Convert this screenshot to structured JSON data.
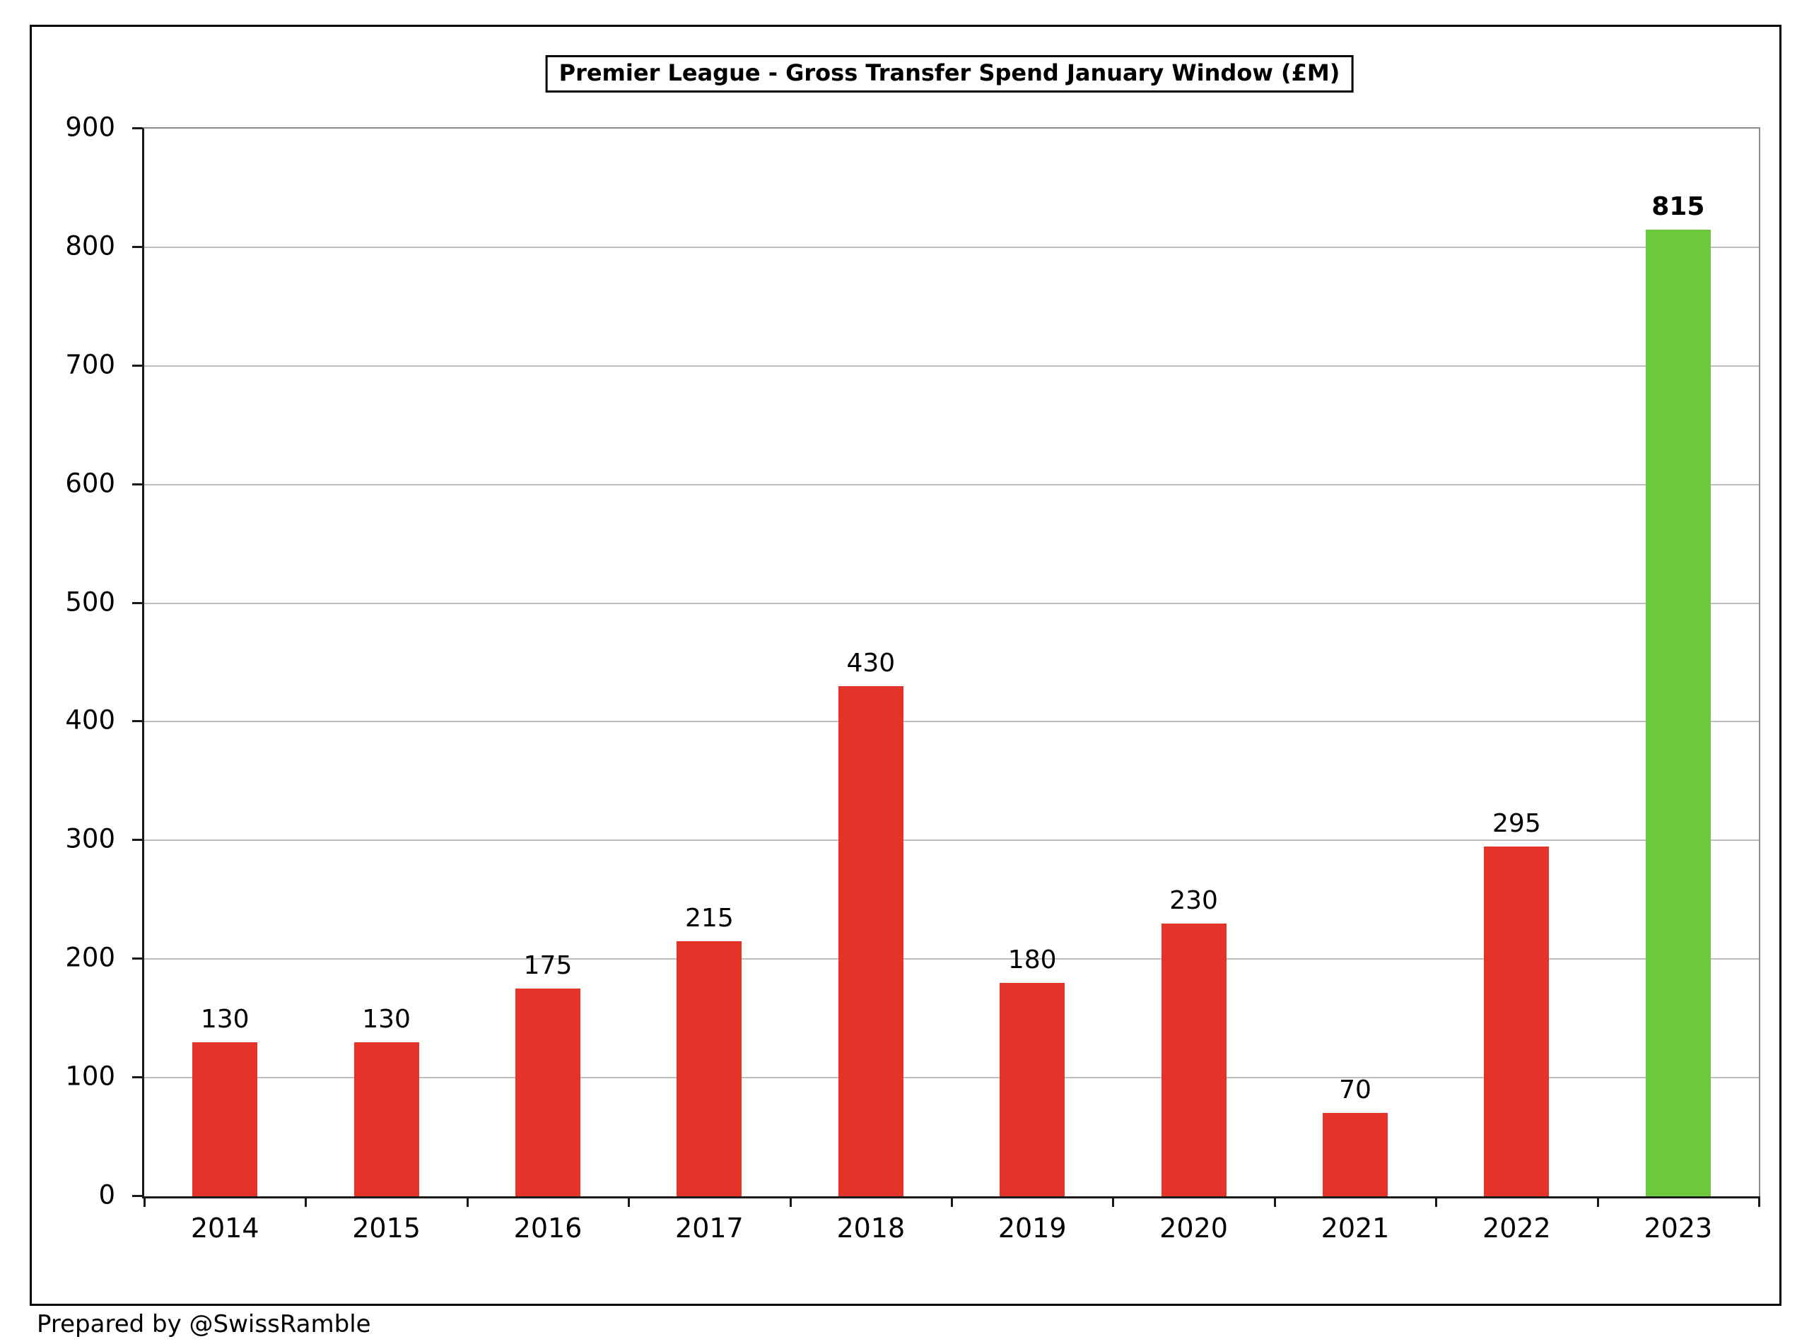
{
  "chart_data": {
    "type": "bar",
    "title": "Premier League - Gross Transfer Spend January Window (£M)",
    "categories": [
      "2014",
      "2015",
      "2016",
      "2017",
      "2018",
      "2019",
      "2020",
      "2021",
      "2022",
      "2023"
    ],
    "values": [
      130,
      130,
      175,
      215,
      430,
      180,
      230,
      70,
      295,
      815
    ],
    "data_labels": [
      "130",
      "130",
      "175",
      "215",
      "430",
      "180",
      "230",
      "70",
      "295",
      "815"
    ],
    "highlight_index": 9,
    "xlabel": "",
    "ylabel": "",
    "ylim": [
      0,
      900
    ],
    "ytick_step": 100,
    "ytick_labels": [
      "0",
      "100",
      "200",
      "300",
      "400",
      "500",
      "600",
      "700",
      "800",
      "900"
    ],
    "grid": "horizontal",
    "legend": "none",
    "colors": {
      "bar_default": "#E6332A",
      "bar_highlight": "#6CC83C",
      "gridline": "#BFBFBF",
      "plot_border": "#8C8C8C",
      "axis_line": "#1A1A1A",
      "text": "#000000"
    }
  },
  "footer": {
    "credit": "Prepared by @SwissRamble"
  }
}
